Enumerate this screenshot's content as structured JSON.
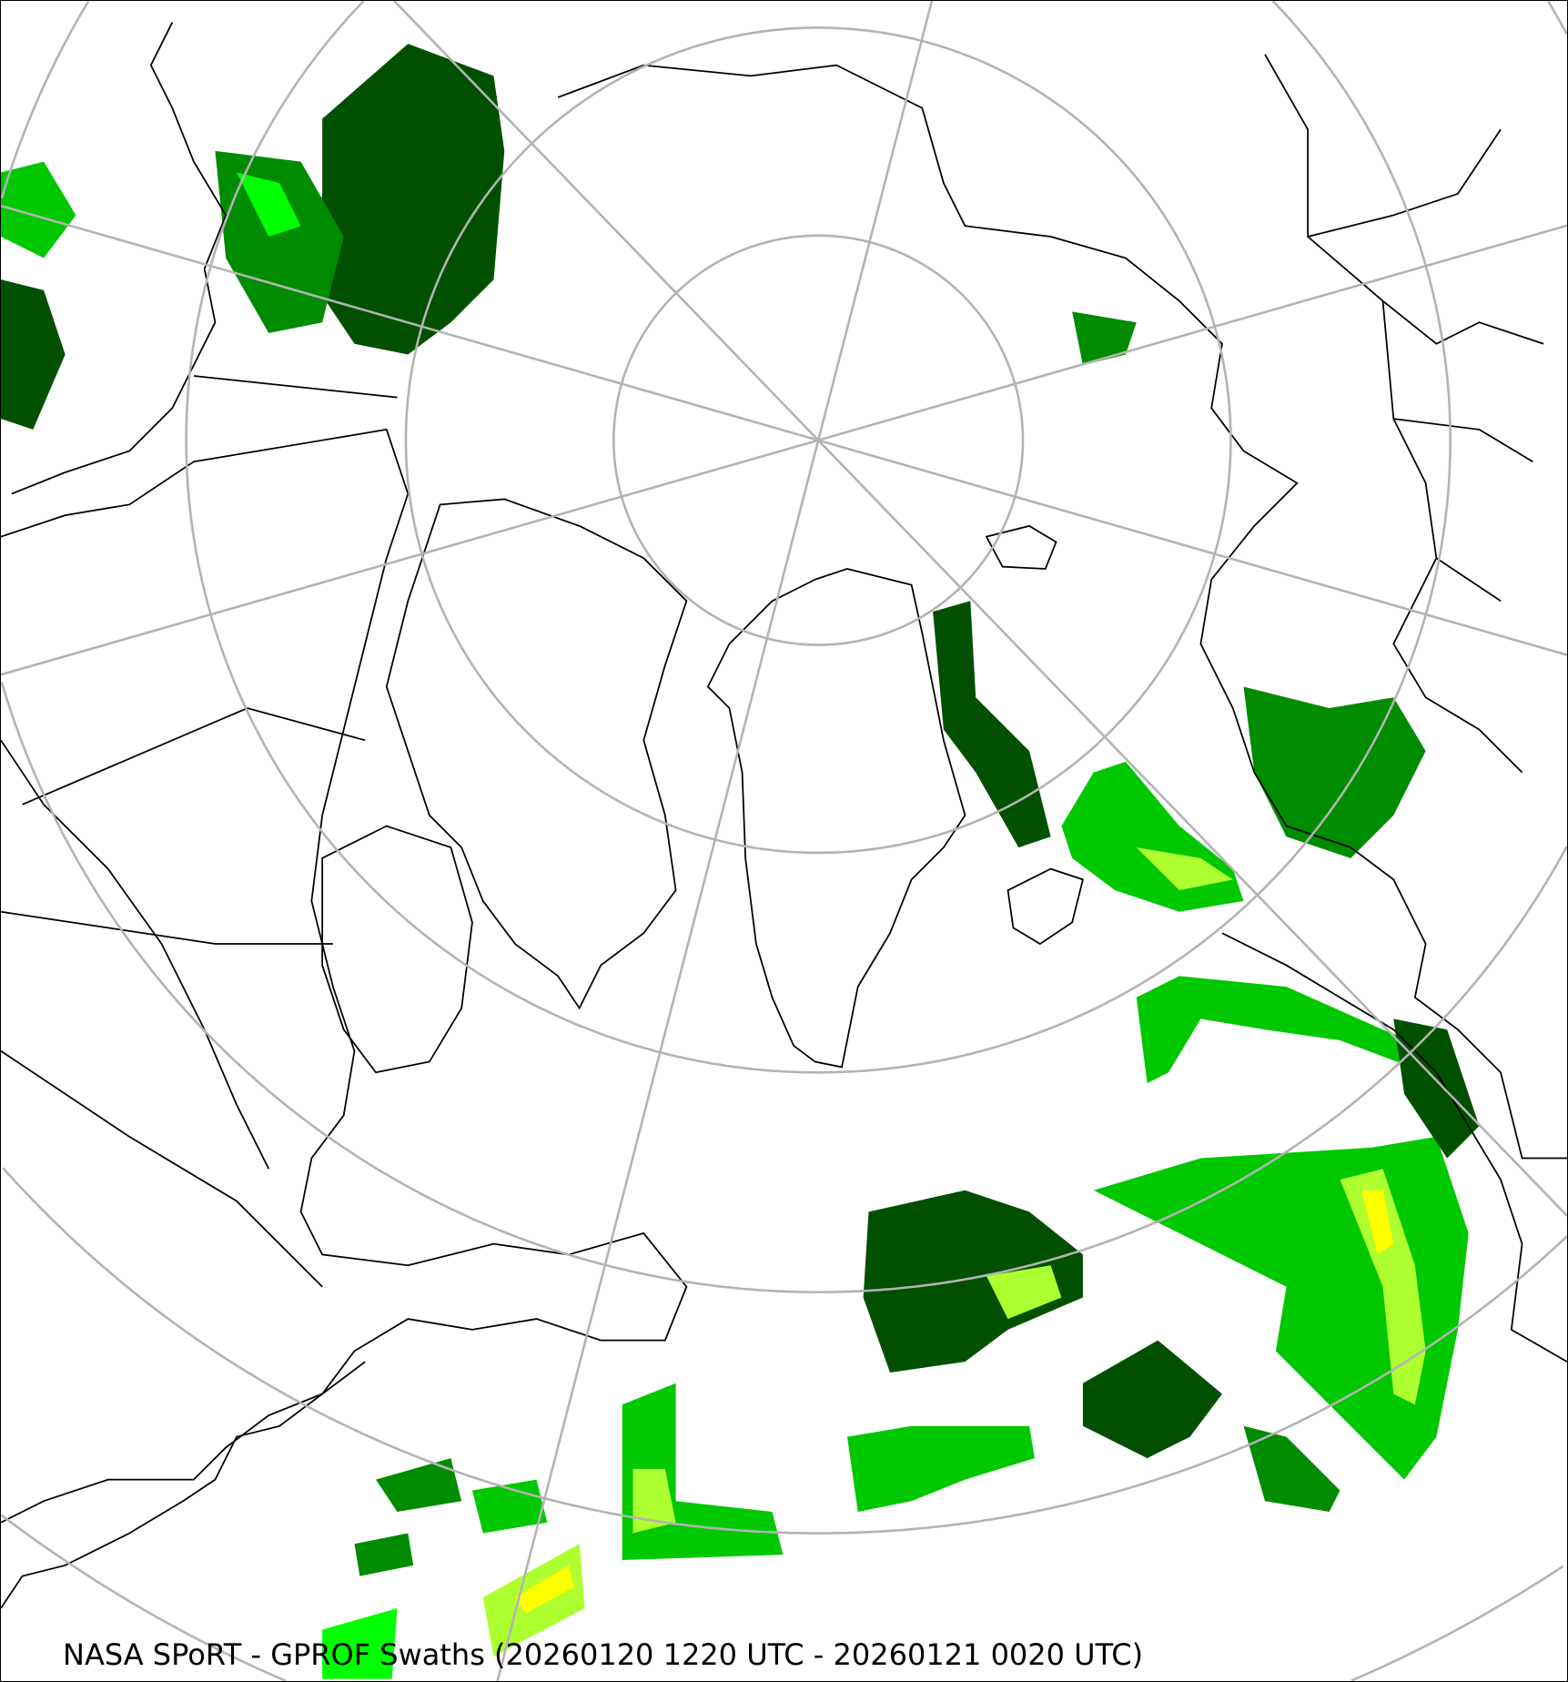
{
  "map": {
    "caption": "NASA SPoRT - GPROF Swaths (20260120 1220 UTC - 20260121 0020 UTC)",
    "projection": "north polar stereographic",
    "graticule_color": "#b3b3b3",
    "coastline_color": "#000000",
    "precip_colors": [
      "#005000",
      "#008c00",
      "#00c800",
      "#00ff00",
      "#adff2f",
      "#ffff00",
      "#ffa500"
    ]
  }
}
